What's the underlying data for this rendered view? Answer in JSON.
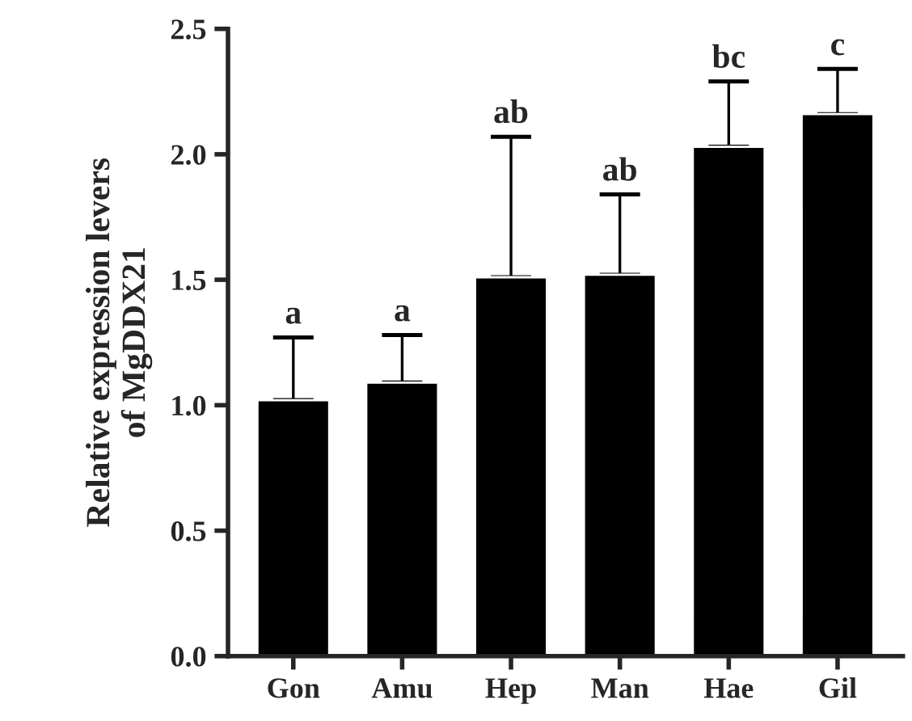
{
  "chart_data": {
    "type": "bar",
    "ylabel": "Relative expression levers\nof MgDDX21",
    "categories": [
      "Gon",
      "Amu",
      "Hep",
      "Man",
      "Hae",
      "Gil"
    ],
    "values": [
      1.02,
      1.09,
      1.51,
      1.52,
      2.03,
      2.16
    ],
    "errors": [
      [
        1.02,
        1.27
      ],
      [
        1.09,
        1.28
      ],
      [
        1.51,
        2.07
      ],
      [
        1.52,
        1.84
      ],
      [
        2.03,
        2.29
      ],
      [
        2.16,
        2.34
      ]
    ],
    "color": "#000000",
    "ylim": [
      0,
      2.5
    ],
    "yticks": [
      {
        "value": 0,
        "label": "0.0"
      },
      {
        "value": 0.5,
        "label": "0.5"
      },
      {
        "value": 1.0,
        "label": "1.0"
      },
      {
        "value": 1.5,
        "label": "1.5"
      },
      {
        "value": 2.0,
        "label": "2.0"
      },
      {
        "value": 2.5,
        "label": "2.5"
      }
    ],
    "grid": false,
    "legend": false,
    "annotations": [
      {
        "text": "a",
        "x": "Gon",
        "y": 1.27
      },
      {
        "text": "a",
        "x": "Amu",
        "y": 1.28
      },
      {
        "text": "ab",
        "x": "Hep",
        "y": 2.07
      },
      {
        "text": "ab",
        "x": "Man",
        "y": 1.84
      },
      {
        "text": "bc",
        "x": "Hae",
        "y": 2.29
      },
      {
        "text": "c",
        "x": "Gil",
        "y": 2.34
      }
    ]
  }
}
